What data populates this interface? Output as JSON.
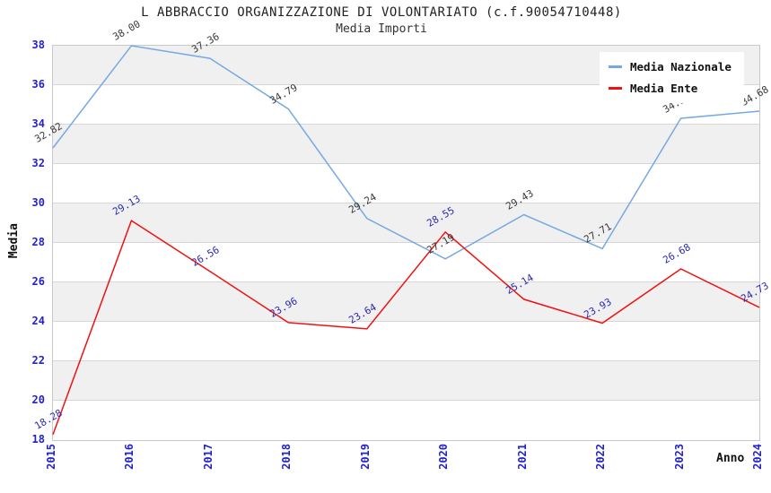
{
  "title": "L ABBRACCIO ORGANIZZAZIONE DI VOLONTARIATO (c.f.90054710448)",
  "subtitle": "Media Importi",
  "chart_data": {
    "type": "line",
    "title": "L ABBRACCIO ORGANIZZAZIONE DI VOLONTARIATO (c.f.90054710448)",
    "subtitle": "Media Importi",
    "xlabel": "Anno",
    "ylabel": "Media",
    "x": [
      2015,
      2016,
      2017,
      2018,
      2019,
      2020,
      2021,
      2022,
      2023,
      2024
    ],
    "xticks": [
      "2015",
      "2016",
      "2017",
      "2018",
      "2019",
      "2020",
      "2021",
      "2022",
      "2023",
      "2024"
    ],
    "yticks": [
      18,
      20,
      22,
      24,
      26,
      28,
      30,
      32,
      34,
      36,
      38
    ],
    "ylim": [
      18,
      38
    ],
    "grid": true,
    "legend_position": "top-right",
    "series": [
      {
        "name": "Media Nazionale",
        "color": "#76a9e2",
        "label_color": "#3a3a3a",
        "values": [
          32.82,
          38.0,
          37.36,
          34.79,
          29.24,
          27.19,
          29.43,
          27.71,
          34.32,
          34.68
        ]
      },
      {
        "name": "Media Ente",
        "color": "#ee1212",
        "label_color": "#2b2bb2",
        "values": [
          18.28,
          29.13,
          26.56,
          23.96,
          23.64,
          28.55,
          25.14,
          23.93,
          26.68,
          24.73
        ]
      }
    ]
  },
  "colors": {
    "axis_tick": "#2222cc",
    "grid_line": "#d6d6d6",
    "band_gray": "#f0f0f0",
    "band_white": "#ffffff",
    "legend_bg": "#ffffff",
    "legend_text": "#111111"
  }
}
